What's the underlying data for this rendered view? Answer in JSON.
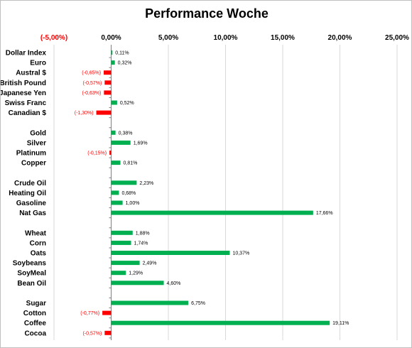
{
  "chart_data": {
    "type": "bar",
    "orientation": "horizontal",
    "title": "Performance Woche",
    "xlim": [
      -5,
      25
    ],
    "x_ticks": [
      -5,
      0,
      5,
      10,
      15,
      20,
      25
    ],
    "x_tick_labels": [
      "(-5,00%)",
      "0,00%",
      "5,00%",
      "10,00%",
      "15,00%",
      "20,00%",
      "25,00%"
    ],
    "grid": true,
    "legend": "none",
    "colors": {
      "positive": "#00b050",
      "negative": "#ff0000",
      "gridline": "#d9d9d9",
      "axis": "#808080"
    },
    "categories": [
      "Dollar Index",
      "Euro",
      "Austral $",
      "British Pound",
      "Japanese Yen",
      "Swiss Franc",
      "Canadian $",
      "",
      "Gold",
      "Silver",
      "Platinum",
      "Copper",
      "",
      "Crude Oil",
      "Heating Oil",
      "Gasoline",
      "Nat Gas",
      "",
      "Wheat",
      "Corn",
      "Oats",
      "Soybeans",
      "SoyMeal",
      "Bean Oil",
      "",
      "Sugar",
      "Cotton",
      "Coffee",
      "Cocoa"
    ],
    "values": [
      0.11,
      0.32,
      -0.65,
      -0.57,
      -0.63,
      0.52,
      -1.3,
      null,
      0.38,
      1.69,
      -0.15,
      0.81,
      null,
      2.23,
      0.68,
      1.0,
      17.66,
      null,
      1.88,
      1.74,
      10.37,
      2.49,
      1.29,
      4.6,
      null,
      6.75,
      -0.77,
      19.11,
      -0.57
    ],
    "data_labels": [
      "0,11%",
      "0,32%",
      "(-0,65%)",
      "(-0,57%)",
      "(-0,63%)",
      "0,52%",
      "(-1,30%)",
      "",
      "0,38%",
      "1,69%",
      "(-0,15%)",
      "0,81%",
      "",
      "2,23%",
      "0,68%",
      "1,00%",
      "17,66%",
      "",
      "1,88%",
      "1,74%",
      "10,37%",
      "2,49%",
      "1,29%",
      "4,60%",
      "",
      "6,75%",
      "(-0,77%)",
      "19,11%",
      "(-0,57%)"
    ]
  }
}
